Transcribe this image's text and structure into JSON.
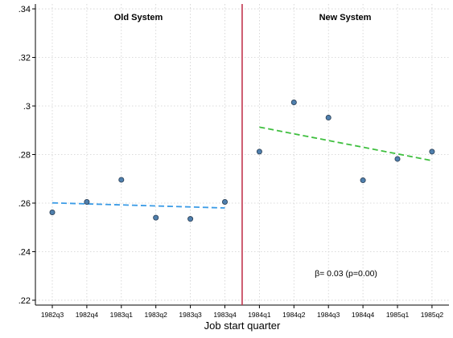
{
  "chart_data": {
    "type": "scatter",
    "title": "",
    "xlabel": "Job start quarter",
    "ylabel": "",
    "categories": [
      "1982q3",
      "1982q4",
      "1983q1",
      "1983q2",
      "1983q3",
      "1983q4",
      "1984q1",
      "1984q2",
      "1984q3",
      "1984q4",
      "1985q1",
      "1985q2"
    ],
    "ylim": [
      0.218,
      0.342
    ],
    "y_ticks": [
      0.22,
      0.24,
      0.26,
      0.28,
      0.3,
      0.32,
      0.34
    ],
    "y_tick_labels": [
      ".22",
      ".24",
      ".26",
      ".28",
      ".3",
      ".32",
      ".34"
    ],
    "grid": true,
    "points": [
      {
        "x": "1982q3",
        "y": 0.2562
      },
      {
        "x": "1982q4",
        "y": 0.2605
      },
      {
        "x": "1983q1",
        "y": 0.2696
      },
      {
        "x": "1983q2",
        "y": 0.254
      },
      {
        "x": "1983q3",
        "y": 0.2535
      },
      {
        "x": "1983q4",
        "y": 0.2605
      },
      {
        "x": "1984q1",
        "y": 0.2812
      },
      {
        "x": "1984q2",
        "y": 0.3015
      },
      {
        "x": "1984q3",
        "y": 0.2952
      },
      {
        "x": "1984q4",
        "y": 0.2694
      },
      {
        "x": "1985q1",
        "y": 0.2782
      },
      {
        "x": "1985q2",
        "y": 0.2812
      }
    ],
    "fit_lines": [
      {
        "from": {
          "x": "1982q3",
          "y": 0.2601
        },
        "to": {
          "x": "1983q4",
          "y": 0.258
        },
        "color": "#3a9be6"
      },
      {
        "from": {
          "x": "1984q1",
          "y": 0.2913
        },
        "to": {
          "x": "1985q2",
          "y": 0.2775
        },
        "color": "#3fbf3f"
      }
    ],
    "cutoff": {
      "between": [
        "1983q4",
        "1984q1"
      ],
      "color": "#c2374f"
    },
    "marker_fill": "#4f7fad",
    "marker_stroke": "#2a3d52",
    "annotations": {
      "left_label": "Old System",
      "right_label": "New System",
      "beta_text": "β=  0.03 (p=0.00)"
    }
  }
}
